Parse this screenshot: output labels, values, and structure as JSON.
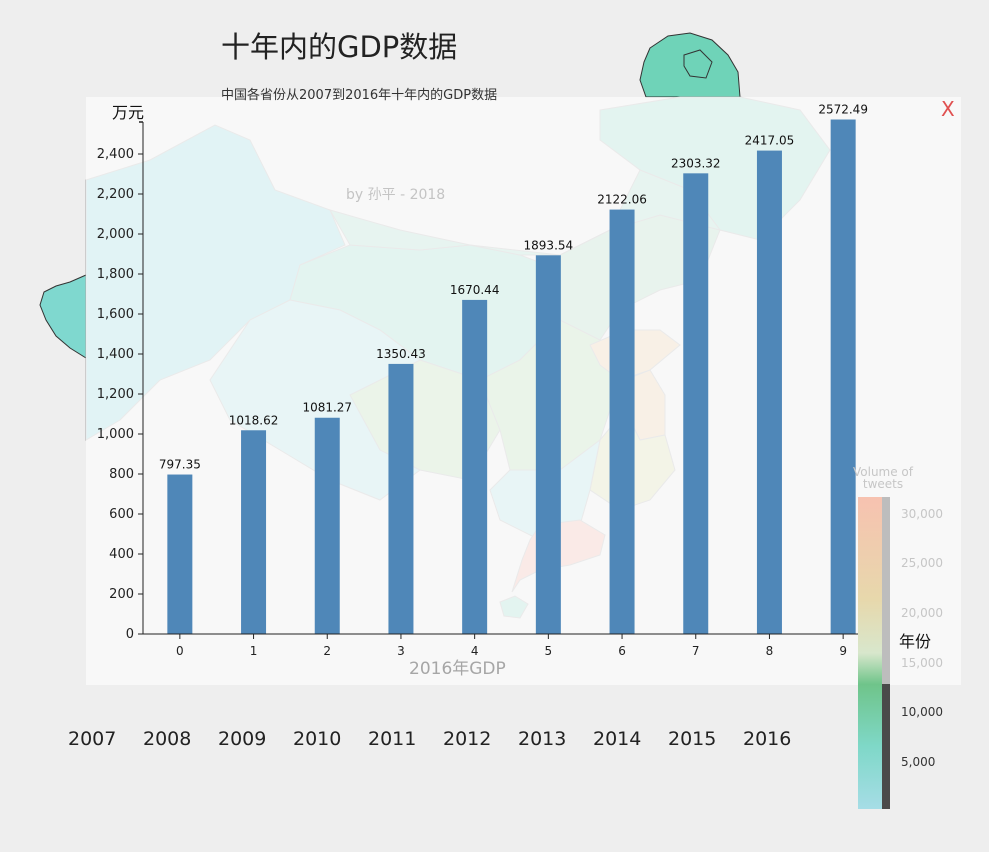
{
  "title": "十年内的GDP数据",
  "subtitle": "中国各省份从2007到2016年十年内的GDP数据",
  "map": {
    "credit": "by 孙平 - 2018",
    "caption": "2016年GDP"
  },
  "close_label": "X",
  "legend": {
    "title": "Volume of tweets",
    "ticks": [
      "30,000",
      "25,000",
      "20,000",
      "15,000",
      "10,000",
      "5,000"
    ]
  },
  "years": [
    "2007",
    "2008",
    "2009",
    "2010",
    "2011",
    "2012",
    "2013",
    "2014",
    "2015",
    "2016"
  ],
  "colors": {
    "bar": "#4f87b8",
    "close": "#e05050",
    "map_green": "#6fd3b8",
    "map_cyan": "#7fd8cf",
    "map_orange": "#f0c898",
    "map_pink": "#f7a99d"
  },
  "chart_data": {
    "type": "bar",
    "categories": [
      "0",
      "1",
      "2",
      "3",
      "4",
      "5",
      "6",
      "7",
      "8",
      "9"
    ],
    "values": [
      797.35,
      1018.62,
      1081.27,
      1350.43,
      1670.44,
      1893.54,
      2122.06,
      2303.32,
      2417.05,
      2572.49
    ],
    "data_labels": [
      "797.35",
      "1018.62",
      "1081.27",
      "1350.43",
      "1670.44",
      "1893.54",
      "2122.06",
      "2303.32",
      "2417.05",
      "2572.49"
    ],
    "xlabel": "年份",
    "ylabel": "万元",
    "ylim": [
      0,
      2560
    ],
    "yticks": [
      0,
      200,
      400,
      600,
      800,
      1000,
      1200,
      1400,
      1600,
      1800,
      2000,
      2200,
      2400
    ],
    "ytick_labels": [
      "0",
      "200",
      "400",
      "600",
      "800",
      "1,000",
      "1,200",
      "1,400",
      "1,600",
      "1,800",
      "2,000",
      "2,200",
      "2,400"
    ],
    "grid": false
  }
}
